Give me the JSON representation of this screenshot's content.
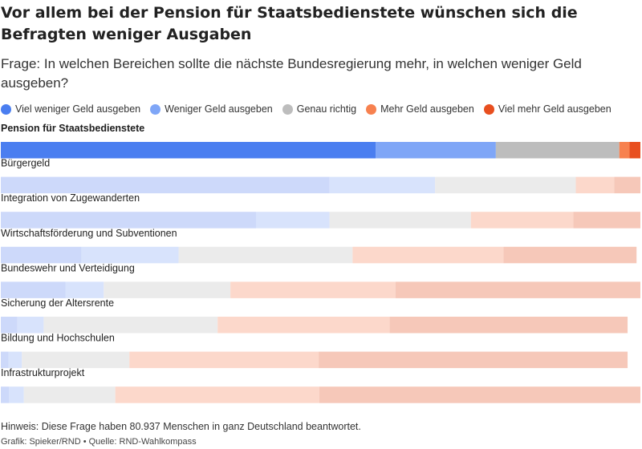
{
  "title": "Vor allem bei der Pension für Staatsbedienstete wünschen sich die Befragten weniger Ausgaben",
  "subtitle": "Frage: In welchen Bereichen sollte die nächste Bundesregierung mehr, in welchen weniger Geld ausgeben?",
  "footnote": "Hinweis: Diese Frage haben 80.937 Menschen in ganz Deutschland beantwortet.",
  "credits": "Grafik: Spieker/RND • Quelle: RND-Wahlkompass",
  "legend": [
    {
      "label": "Viel weniger Geld ausgeben",
      "color": "#4a7ef0"
    },
    {
      "label": "Weniger Geld ausgeben",
      "color": "#7fa6f7"
    },
    {
      "label": "Genau richtig",
      "color": "#bdbdbd"
    },
    {
      "label": "Mehr Geld ausgeben",
      "color": "#f7814f"
    },
    {
      "label": "Viel mehr Geld ausgeben",
      "color": "#e84f1f"
    }
  ],
  "chart_data": {
    "type": "bar",
    "orientation": "horizontal",
    "stacked": true,
    "value_unit": "percent",
    "highlighted_category": "Pension für Staatsbedienstete",
    "categories": [
      "Pension für Staatsbedienstete",
      "Bürgergeld",
      "Integration von Zugewanderten",
      "Wirtschaftsförderung und Subventionen",
      "Bundeswehr und Verteidigung",
      "Sicherung der Altersrente",
      "Bildung und Hochschulen",
      "Infrastrukturprojekt"
    ],
    "series": [
      {
        "name": "Viel weniger Geld ausgeben",
        "color": "#4a7ef0",
        "values": [
          58.6,
          51.4,
          39.9,
          12.6,
          10.1,
          2.6,
          1.2,
          1.3
        ]
      },
      {
        "name": "Weniger Geld ausgeben",
        "color": "#7fa6f7",
        "values": [
          18.8,
          16.5,
          11.5,
          15.2,
          6.0,
          4.1,
          2.1,
          2.3
        ]
      },
      {
        "name": "Genau richtig",
        "color": "#bdbdbd",
        "values": [
          19.3,
          22.0,
          22.1,
          27.2,
          19.8,
          27.2,
          16.8,
          14.3
        ]
      },
      {
        "name": "Mehr Geld ausgeben",
        "color": "#f7814f",
        "values": [
          1.6,
          6.0,
          16.0,
          23.6,
          25.8,
          26.9,
          29.6,
          31.9
        ]
      },
      {
        "name": "Viel mehr Geld ausgeben",
        "color": "#e84f1f",
        "values": [
          1.7,
          4.1,
          10.5,
          20.8,
          38.3,
          37.2,
          48.3,
          50.2
        ]
      }
    ],
    "xlim": [
      0,
      100
    ]
  }
}
